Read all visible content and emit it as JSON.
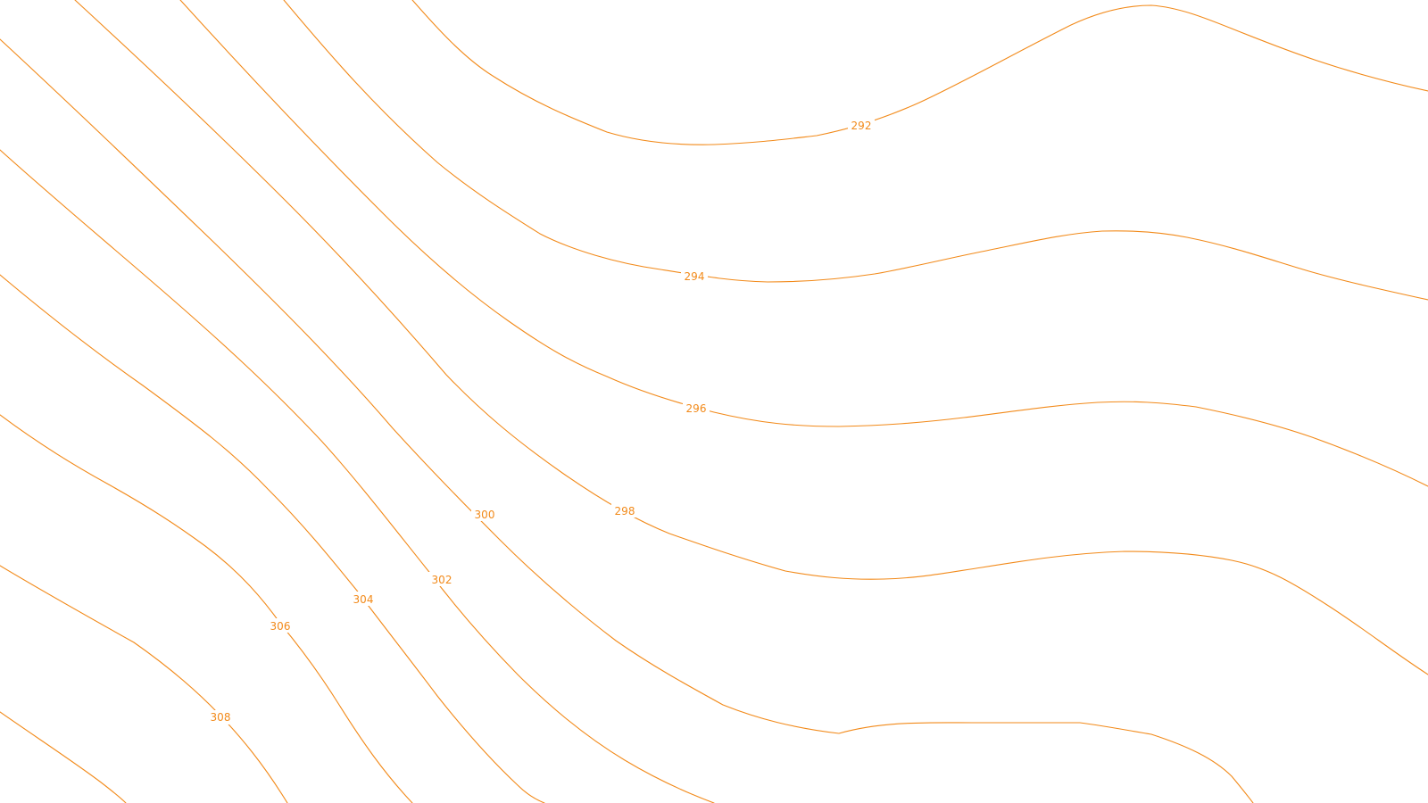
{
  "map": {
    "layer": "temperature-contours",
    "line_color": "#f28a1a",
    "label_color": "#f28a1a",
    "contours": [
      {
        "id": "c292",
        "label": "292"
      },
      {
        "id": "c294",
        "label": "294"
      },
      {
        "id": "c296",
        "label": "296"
      },
      {
        "id": "c298",
        "label": "298"
      },
      {
        "id": "c300",
        "label": "300"
      },
      {
        "id": "c302",
        "label": "302"
      },
      {
        "id": "c304",
        "label": "304"
      },
      {
        "id": "c306",
        "label": "306"
      },
      {
        "id": "c308",
        "label": "308"
      },
      {
        "id": "c310",
        "label": ""
      }
    ]
  }
}
